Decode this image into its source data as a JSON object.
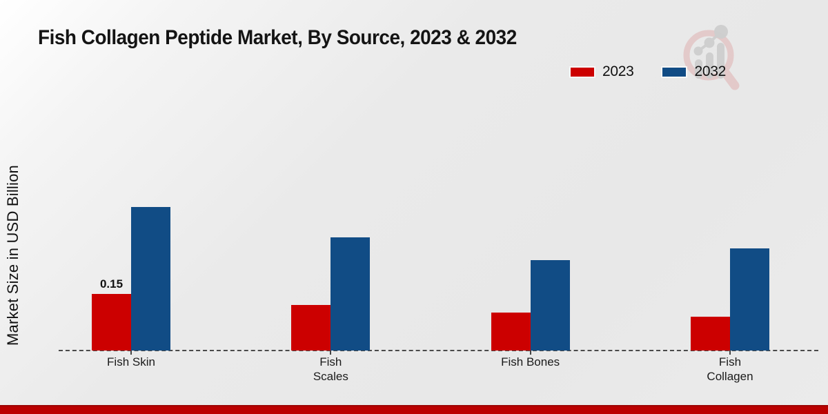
{
  "chart_data": {
    "type": "bar",
    "title": "Fish Collagen Peptide Market, By Source, 2023 & 2032",
    "ylabel": "Market Size in USD Billion",
    "categories": [
      "Fish Skin",
      "Fish Scales",
      "Fish Bones",
      "Fish Collagen"
    ],
    "tick_labels": [
      "Fish Skin",
      "Fish\nScales",
      "Fish Bones",
      "Fish\nCollagen"
    ],
    "series": [
      {
        "name": "2023",
        "color": "#cc0000",
        "values": [
          0.15,
          0.12,
          0.1,
          0.09
        ]
      },
      {
        "name": "2032",
        "color": "#114c85",
        "values": [
          0.38,
          0.3,
          0.24,
          0.27
        ]
      }
    ],
    "annotations": [
      {
        "category": "Fish Skin",
        "series": "2023",
        "text": "0.15"
      }
    ],
    "ylim": [
      0,
      0.45
    ],
    "grid": false,
    "baseline_style": "dashed",
    "legend_position": "top-right"
  },
  "watermark": {
    "name": "market-research-magnifier-logo"
  },
  "footer": {
    "band_color": "#bb0000"
  }
}
